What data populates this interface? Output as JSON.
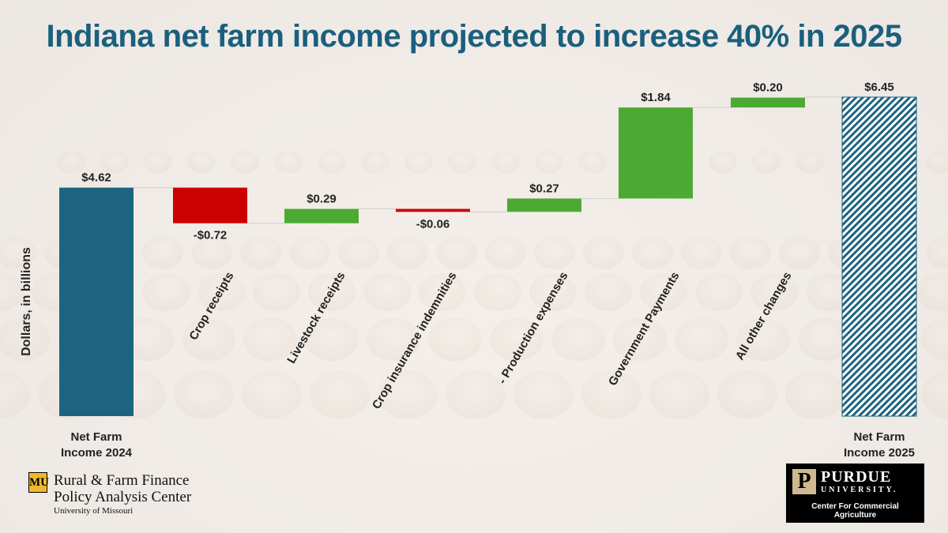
{
  "title": "Indiana net farm income projected to increase 40% in 2025",
  "colors": {
    "title": "#1b5f7e",
    "start_bar": "#1c6480",
    "increase": "#4caa32",
    "decrease": "#cc0000",
    "end_bar_stripe": "#1c6480",
    "end_bar_base": "#ffffff"
  },
  "chart_data": {
    "type": "bar",
    "subtype": "waterfall",
    "ylabel": "Dollars, in billions",
    "start": {
      "label": "Net Farm Income 2024",
      "label_lines": [
        "Net Farm",
        "Income 2024"
      ],
      "value": 4.62,
      "display": "$4.62"
    },
    "changes": [
      {
        "category": "Crop receipts",
        "value": -0.72,
        "display": "-$0.72"
      },
      {
        "category": "Livestock receipts",
        "value": 0.29,
        "display": "$0.29"
      },
      {
        "category": "Crop insurance indemnities",
        "value": -0.06,
        "display": "-$0.06"
      },
      {
        "category": "- Production expenses",
        "value": 0.27,
        "display": "$0.27"
      },
      {
        "category": "Government Payments",
        "value": 1.84,
        "display": "$1.84"
      },
      {
        "category": "All other changes",
        "value": 0.2,
        "display": "$0.20"
      }
    ],
    "end": {
      "label": "Net Farm Income 2025",
      "label_lines": [
        "Net Farm",
        "Income 2025"
      ],
      "value": 6.45,
      "display": "$6.45"
    },
    "ylim": [
      0,
      6.45
    ],
    "grid": false,
    "legend": "none"
  },
  "logos": {
    "mu": {
      "badge": "MU",
      "line1": "Rural & Farm Finance",
      "line2": "Policy Analysis Center",
      "line3": "University of Missouri"
    },
    "purdue": {
      "mark": "P",
      "name": "PURDUE",
      "university": "UNIVERSITY.",
      "sub": "Center For Commercial Agriculture"
    }
  }
}
